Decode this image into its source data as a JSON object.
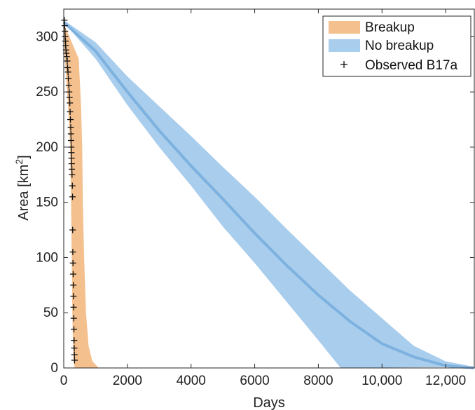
{
  "chart_data": {
    "type": "area",
    "xlabel": "Days",
    "ylabel": {
      "main": "Area [km",
      "sup": "2",
      "close": "]"
    },
    "xlim": [
      0,
      12900
    ],
    "ylim": [
      0,
      325
    ],
    "xticks": [
      0,
      2000,
      4000,
      6000,
      8000,
      10000,
      12000
    ],
    "xtick_labels": [
      "0",
      "2000",
      "4000",
      "6000",
      "8000",
      "10,000",
      "12,000"
    ],
    "yticks": [
      0,
      50,
      100,
      150,
      200,
      250,
      300
    ],
    "ytick_labels": [
      "0",
      "50",
      "100",
      "150",
      "200",
      "250",
      "300"
    ],
    "grid": false,
    "legend_position": "top-right",
    "series": [
      {
        "name": "Breakup",
        "kind": "band",
        "color": "#f4c08e",
        "upper": [
          [
            0,
            312
          ],
          [
            470,
            280
          ],
          [
            540,
            240
          ],
          [
            580,
            200
          ],
          [
            600,
            150
          ],
          [
            640,
            100
          ],
          [
            700,
            50
          ],
          [
            780,
            20
          ],
          [
            900,
            6
          ],
          [
            1100,
            0
          ]
        ],
        "lower": [
          [
            0,
            300
          ],
          [
            60,
            270
          ],
          [
            130,
            240
          ],
          [
            200,
            200
          ],
          [
            230,
            150
          ],
          [
            250,
            100
          ],
          [
            270,
            50
          ],
          [
            290,
            20
          ],
          [
            310,
            5
          ],
          [
            350,
            0
          ]
        ]
      },
      {
        "name": "No breakup",
        "kind": "band",
        "color": "#a9cdec",
        "upper": [
          [
            0,
            315
          ],
          [
            1000,
            295
          ],
          [
            2000,
            264
          ],
          [
            3000,
            237
          ],
          [
            4000,
            210
          ],
          [
            5000,
            182
          ],
          [
            6000,
            155
          ],
          [
            7000,
            126
          ],
          [
            8000,
            98
          ],
          [
            9000,
            70
          ],
          [
            10000,
            45
          ],
          [
            11000,
            20
          ],
          [
            12000,
            6
          ],
          [
            12900,
            1
          ]
        ],
        "lower": [
          [
            0,
            313
          ],
          [
            1000,
            280
          ],
          [
            2000,
            238
          ],
          [
            3000,
            200
          ],
          [
            4000,
            165
          ],
          [
            5000,
            128
          ],
          [
            6000,
            95
          ],
          [
            7000,
            60
          ],
          [
            8000,
            25
          ],
          [
            8700,
            0
          ]
        ],
        "median": [
          [
            0,
            313
          ],
          [
            1000,
            287
          ],
          [
            2000,
            250
          ],
          [
            3000,
            215
          ],
          [
            4000,
            183
          ],
          [
            5000,
            153
          ],
          [
            6000,
            122
          ],
          [
            7000,
            93
          ],
          [
            8000,
            66
          ],
          [
            9000,
            42
          ],
          [
            10000,
            22
          ],
          [
            11000,
            10
          ],
          [
            12000,
            2
          ],
          [
            12900,
            0
          ]
        ]
      },
      {
        "name": "Observed B17a",
        "kind": "scatter",
        "marker": "+",
        "color": "#111111",
        "points": [
          [
            20,
            315
          ],
          [
            30,
            310
          ],
          [
            40,
            305
          ],
          [
            45,
            300
          ],
          [
            55,
            296
          ],
          [
            60,
            292
          ],
          [
            70,
            288
          ],
          [
            80,
            285
          ],
          [
            95,
            282
          ],
          [
            110,
            278
          ],
          [
            120,
            272
          ],
          [
            135,
            268
          ],
          [
            145,
            262
          ],
          [
            160,
            256
          ],
          [
            170,
            250
          ],
          [
            180,
            245
          ],
          [
            190,
            240
          ],
          [
            200,
            232
          ],
          [
            210,
            225
          ],
          [
            220,
            218
          ],
          [
            225,
            212
          ],
          [
            230,
            206
          ],
          [
            235,
            200
          ],
          [
            240,
            195
          ],
          [
            245,
            190
          ],
          [
            250,
            185
          ],
          [
            255,
            180
          ],
          [
            260,
            175
          ],
          [
            270,
            165
          ],
          [
            275,
            155
          ],
          [
            280,
            125
          ],
          [
            285,
            105
          ],
          [
            290,
            95
          ],
          [
            295,
            85
          ],
          [
            300,
            75
          ],
          [
            305,
            65
          ],
          [
            310,
            55
          ],
          [
            315,
            45
          ],
          [
            320,
            35
          ],
          [
            325,
            25
          ],
          [
            330,
            18
          ],
          [
            335,
            12
          ],
          [
            340,
            7
          ]
        ]
      }
    ]
  }
}
